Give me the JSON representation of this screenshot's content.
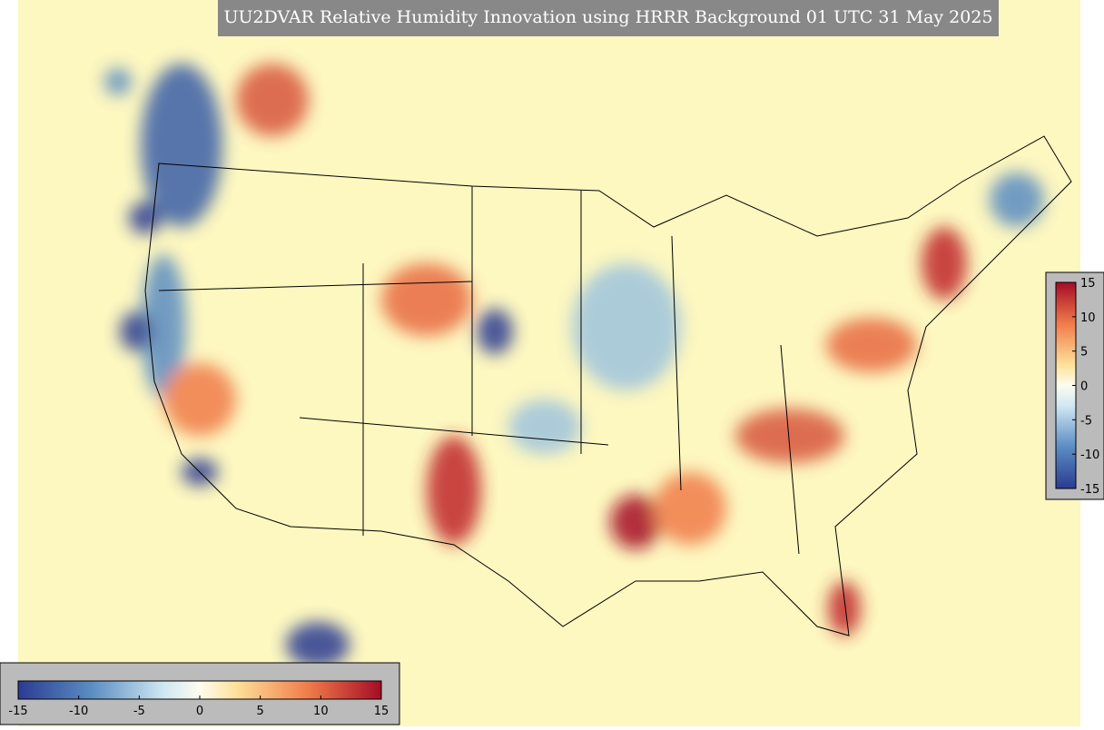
{
  "title": "UU2DVAR Relative Humidity Innovation using HRRR Background 01 UTC 31 May 2025",
  "horizontal_colorbar": {
    "lim": [
      -15,
      15
    ],
    "ticks": [
      -15,
      -10,
      -5,
      0,
      5,
      10,
      15
    ]
  },
  "vertical_colorbar": {
    "lim": [
      -15,
      15
    ],
    "ticks": [
      15,
      10,
      5,
      0,
      -5,
      -10,
      -15
    ]
  }
}
